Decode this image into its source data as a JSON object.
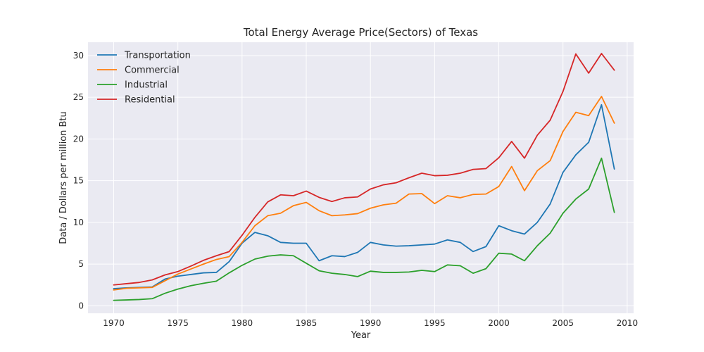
{
  "chart_data": {
    "type": "line",
    "title": "Total Energy Average Price(Sectors) of Texas",
    "xlabel": "Year",
    "ylabel": "Data / Dollars per million Btu",
    "xlim": [
      1968,
      2010.5
    ],
    "ylim": [
      -0.9,
      31.6
    ],
    "xticks": [
      1970,
      1975,
      1980,
      1985,
      1990,
      1995,
      2000,
      2005,
      2010
    ],
    "yticks": [
      0,
      5,
      10,
      15,
      20,
      25,
      30
    ],
    "grid": true,
    "legend_position": "top-left",
    "x": [
      1970,
      1971,
      1972,
      1973,
      1974,
      1975,
      1976,
      1977,
      1978,
      1979,
      1980,
      1981,
      1982,
      1983,
      1984,
      1985,
      1986,
      1987,
      1988,
      1989,
      1990,
      1991,
      1992,
      1993,
      1994,
      1995,
      1996,
      1997,
      1998,
      1999,
      2000,
      2001,
      2002,
      2003,
      2004,
      2005,
      2006,
      2007,
      2008,
      2009
    ],
    "series": [
      {
        "name": "Transportation",
        "color": "#1f77b4",
        "values": [
          2.05,
          2.15,
          2.2,
          2.25,
          3.2,
          3.55,
          3.75,
          3.95,
          4.0,
          5.3,
          7.5,
          8.8,
          8.4,
          7.6,
          7.5,
          7.5,
          5.4,
          6.0,
          5.9,
          6.4,
          7.6,
          7.3,
          7.15,
          7.2,
          7.3,
          7.4,
          7.9,
          7.6,
          6.5,
          7.1,
          9.6,
          9.0,
          8.6,
          10.0,
          12.2,
          16.0,
          18.1,
          19.6,
          24.1,
          16.4
        ]
      },
      {
        "name": "Commercial",
        "color": "#ff7f0e",
        "values": [
          1.9,
          2.1,
          2.15,
          2.2,
          3.0,
          3.8,
          4.4,
          5.0,
          5.55,
          5.9,
          7.6,
          9.6,
          10.8,
          11.1,
          12.0,
          12.4,
          11.4,
          10.8,
          10.9,
          11.05,
          11.7,
          12.1,
          12.3,
          13.4,
          13.45,
          12.25,
          13.2,
          12.95,
          13.35,
          13.4,
          14.3,
          16.7,
          13.8,
          16.2,
          17.4,
          20.9,
          23.2,
          22.8,
          25.1,
          21.9
        ]
      },
      {
        "name": "Industrial",
        "color": "#2ca02c",
        "values": [
          0.65,
          0.7,
          0.75,
          0.85,
          1.5,
          2.0,
          2.4,
          2.7,
          2.95,
          3.95,
          4.85,
          5.6,
          5.95,
          6.1,
          6.0,
          5.1,
          4.2,
          3.9,
          3.75,
          3.5,
          4.15,
          4.0,
          4.0,
          4.05,
          4.25,
          4.1,
          4.9,
          4.8,
          3.9,
          4.45,
          6.3,
          6.2,
          5.4,
          7.2,
          8.7,
          11.1,
          12.8,
          14.0,
          17.7,
          11.2
        ]
      },
      {
        "name": "Residential",
        "color": "#d62728",
        "values": [
          2.5,
          2.65,
          2.8,
          3.1,
          3.7,
          4.1,
          4.75,
          5.45,
          6.0,
          6.5,
          8.45,
          10.6,
          12.45,
          13.3,
          13.2,
          13.75,
          13.0,
          12.5,
          12.95,
          13.05,
          14.0,
          14.5,
          14.75,
          15.35,
          15.9,
          15.6,
          15.65,
          15.9,
          16.35,
          16.45,
          17.75,
          19.7,
          17.7,
          20.45,
          22.25,
          25.7,
          30.2,
          27.9,
          30.25,
          28.25
        ]
      }
    ]
  }
}
